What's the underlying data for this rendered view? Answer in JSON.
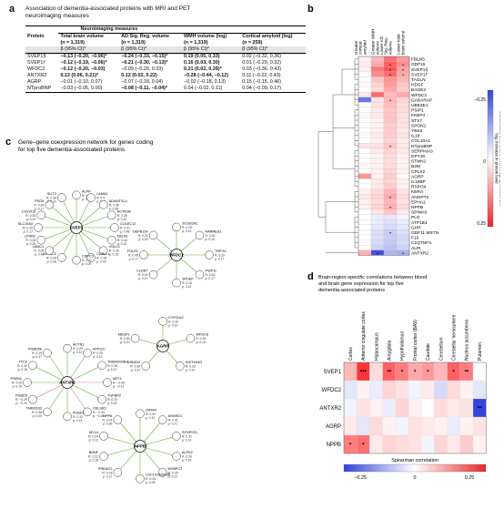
{
  "panel_a": {
    "letter": "a",
    "title": "Association of dementia-associated proteins with MRI and PET neuroimaging measures",
    "group_header": "Neuroimaging measures",
    "columns": [
      {
        "label": "Protein",
        "sub": ""
      },
      {
        "label": "Total brain volume",
        "sub": "(n = 1,319)"
      },
      {
        "label": "AD Sig. Reg. volume",
        "sub": "(n = 1,319)"
      },
      {
        "label": "WMH volume (log)",
        "sub": "(n = 1,319)"
      },
      {
        "label": "Cortical amyloid (log)",
        "sub": "(n = 259)"
      }
    ],
    "beta_label": "β (95% CI)*",
    "rows": [
      {
        "protein": "SVEP1§",
        "c1": "−0.13 (−0.20, −0.06)*",
        "c2": "−0.24 (−0.33, −0.15)*",
        "c3": "0.19 (0.05, 0.33)",
        "c4": "0.02 (−0.32, 0.36)",
        "bold": [
          true,
          true,
          true,
          false
        ]
      },
      {
        "protein": "SVEP1†",
        "c1": "−0.12 (−0.19, −0.06)*",
        "c2": "−0.21 (−0.30, −0.13)*",
        "c3": "0.16 (0.03, 0.30)",
        "c4": "0.01 (−0.29, 0.32)",
        "bold": [
          true,
          true,
          true,
          false
        ]
      },
      {
        "protein": "WFDC2",
        "c1": "−0.12 (−0.20, −0.03)",
        "c2": "−0.09 (−0.20, 0.03)",
        "c3": "0.21 (0.02, 0.39)*",
        "c4": "0.03 (−0.36, 0.43)",
        "bold": [
          true,
          false,
          true,
          false
        ]
      },
      {
        "protein": "ANTXR2",
        "c1": "0.13 (0.06, 0.21)*",
        "c2": "0.12 (0.02, 0.22)",
        "c3": "−0.28 (−0.44, −0.12)",
        "c4": "0.11 (−0.22, 0.43)",
        "bold": [
          true,
          true,
          true,
          false
        ]
      },
      {
        "protein": "AGRP",
        "c1": "−0.01 (−0.10, 0.07)",
        "c2": "−0.07 (−0.18, 0.04)",
        "c3": "−0.02 (−0.18, 0.13)",
        "c4": "0.15 (−0.15, 0.46)",
        "bold": [
          false,
          false,
          false,
          false
        ]
      },
      {
        "protein": "NTproBNP",
        "c1": "−0.03 (−0.05, 0.00)",
        "c2": "−0.08 (−0.11, −0.04)*",
        "c3": "0.04 (−0.02, 0.11)",
        "c4": "0.04 (−0.09, 0.17)",
        "bold": [
          false,
          true,
          false,
          false
        ]
      }
    ]
  },
  "panel_b": {
    "letter": "b",
    "col_labels": [
      "Greater cortical amyloid",
      "Greater WMH volume",
      "Lower AD Sig. Reg. volume",
      "Lower total brain volume"
    ],
    "row_labels": [
      "FBLN5",
      "GDF15",
      "SVEP1§",
      "SVEP1†",
      "TAGLN",
      "HDGF",
      "BAGE2",
      "WFDC2",
      "GABARAP",
      "UBE2E1",
      "PSIP1",
      "FKBP4",
      "STX7",
      "SPON1",
      "YBX2",
      "IL18",
      "COL10A1",
      "NTproBNP",
      "SERPINA3",
      "DPY30",
      "STMN1",
      "B2M",
      "CPLX2",
      "AGRP",
      "IL18BP",
      "RSPO4",
      "KERA",
      "ANGPT2",
      "EPHA2",
      "NPPB",
      "SPINK9",
      "PLG",
      "ATP1B1",
      "GHR",
      "GDF11 MSTN",
      "F10",
      "C1QTNF3",
      "ALPI",
      "ANTXR2"
    ],
    "legend_title": "Standardized difference in neuroimaging measure per log₂ increase in protein level",
    "legend_ticks": [
      "−0.25",
      "0",
      "0.25"
    ],
    "colors": {
      "neg": "#3344dd",
      "pos": "#e8262a",
      "mid": "#ffffff"
    }
  },
  "panel_c": {
    "letter": "c",
    "title": "Gene–gene coexpression network for genes coding for top five dementia-associated proteins",
    "hubs": [
      "SVEP1",
      "WFDC2",
      "AGRP",
      "ANTXR2",
      "NPPB"
    ],
    "nodes": [
      {
        "name": "ALPP",
        "r": "0.35",
        "p": "0.12"
      },
      {
        "name": "LAMA2",
        "r": "0.9",
        "p": "0.61"
      },
      {
        "name": "ADAMTSL4",
        "r": "0.35",
        "p": "0.59"
      },
      {
        "name": "ACTR1B",
        "r": "0.35",
        "p": "0.12"
      },
      {
        "name": "COLEC12",
        "r": "0.31",
        "p": "0.48"
      },
      {
        "name": "FBLN1",
        "r": "0.44",
        "p": "0.15"
      },
      {
        "name": "VGLL3",
        "r": "0.29",
        "p": "0.15"
      },
      {
        "name": "COBLL1",
        "r": "0.28",
        "p": "0.43"
      },
      {
        "name": "CDPC3",
        "r": "0.37",
        "p": "0.09"
      },
      {
        "name": "KDELC2",
        "r": "0.34",
        "p": "0.28"
      },
      {
        "name": "LAMC1",
        "r": "0.28",
        "p": "0.43"
      },
      {
        "name": "LPHN2",
        "r": "0.26",
        "p": "0.25"
      },
      {
        "name": "SLC19A3",
        "r": "0.29",
        "p": "0.17"
      },
      {
        "name": "C10orf10",
        "r": "0.30",
        "p": "0.14"
      },
      {
        "name": "PSG9",
        "r": "0.30",
        "p": "0.17"
      },
      {
        "name": "SLIT3",
        "r": "0.34",
        "p": "0.13"
      },
      {
        "name": "SCGB2A1",
        "r": "0.29",
        "p": "0.10"
      },
      {
        "name": "RARRES1",
        "r": "0.30",
        "p": "0.19"
      },
      {
        "name": "TRPV4",
        "r": "0.29",
        "p": "0.17"
      },
      {
        "name": "PSIP11",
        "r": "0.40",
        "p": "0.17"
      },
      {
        "name": "SPDEF",
        "r": "0.16",
        "p": "0.10"
      },
      {
        "name": "CLDN7",
        "r": "0.30",
        "p": "0.17"
      },
      {
        "name": "FOLR1",
        "r": "0.45",
        "p": "0.17"
      },
      {
        "name": "DEFB124",
        "r": "0.24",
        "p": "0.30"
      },
      {
        "name": "CYP21A2",
        "r": "0.33",
        "p": "0.10"
      },
      {
        "name": "WFDC6",
        "r": "0.33",
        "p": "0.10"
      },
      {
        "name": "HIST1H4G",
        "r": "0.33",
        "p": "0.10"
      },
      {
        "name": "RHBDD2",
        "r": "0.30",
        "p": "0.17"
      },
      {
        "name": "MESP2",
        "r": "0.33",
        "p": "0.10"
      },
      {
        "name": "ACTN1",
        "r": "0.29",
        "p": "0.12"
      },
      {
        "name": "ATP11C",
        "r": "0.29",
        "p": "0.15"
      },
      {
        "name": "TMEM200B",
        "r": "0.26",
        "p": "0.17"
      },
      {
        "name": "MZT1",
        "r": "−0.45",
        "p": "−0.12"
      },
      {
        "name": "TGFBR2",
        "r": "0.23",
        "p": "0.22"
      },
      {
        "name": "CELSR2",
        "r": "−0.44",
        "p": "−0.26"
      },
      {
        "name": "PCBD1",
        "r": "0.33",
        "p": "0.15"
      },
      {
        "name": "TMEM163",
        "r": "0.38",
        "p": "0.09"
      },
      {
        "name": "PGBD5",
        "r": "−0.29",
        "p": "−0.19"
      },
      {
        "name": "PSEN1",
        "r": "0.25",
        "p": "0.19"
      },
      {
        "name": "TTC9",
        "r": "0.30",
        "p": "0.19"
      },
      {
        "name": "PGBD5b",
        "r": "0.19",
        "p": "0.17"
      },
      {
        "name": "GATA4",
        "r": "0.34",
        "p": "0.11"
      },
      {
        "name": "ANKRD1",
        "r": "0.41",
        "p": "0.21"
      },
      {
        "name": "SYNPO2L",
        "r": "0.31",
        "p": "0.14"
      },
      {
        "name": "ALPK2",
        "r": "0.30",
        "p": "0.16"
      },
      {
        "name": "MYBPC3",
        "r": "0.29",
        "p": "0.12"
      },
      {
        "name": "LOC101928435",
        "r": "0.33",
        "p": "0.09"
      },
      {
        "name": "PRKAG2",
        "r": "0.23",
        "p": "0.17"
      },
      {
        "name": "BDNF",
        "r": "0.22",
        "p": "0.18"
      },
      {
        "name": "MYL4",
        "r": "0.24",
        "p": "0.12"
      },
      {
        "name": "NPPA",
        "r": "0.24",
        "p": "0.26"
      }
    ]
  },
  "panel_d": {
    "letter": "d",
    "title": "Brain-region-specific correlations between blood and brain gene expression for top five dementia-associated proteins",
    "regions": [
      "Cortex",
      "Anterior cingulate cortex",
      "Hippocampus",
      "Amygdala",
      "Hypothalamus",
      "Frontal cortex (BA9)",
      "Caudate",
      "Cerebellum",
      "Cerebellar hemisphere",
      "Nucleus accumbens",
      "Putamen"
    ],
    "genes": [
      "SVEP1",
      "WFDC2",
      "ANTXR2",
      "AGRP",
      "NPPB"
    ],
    "legend_title": "Spearman correlation",
    "legend_ticks": [
      "−0.25",
      "0",
      "0.25"
    ]
  },
  "chart_data": [
    {
      "type": "heatmap",
      "title": "",
      "x": [
        "Greater cortical amyloid",
        "Greater WMH volume",
        "Lower AD Sig. Reg. volume",
        "Lower total brain volume"
      ],
      "y": [
        "FBLN5",
        "GDF15",
        "SVEP1§",
        "SVEP1†",
        "TAGLN",
        "HDGF",
        "BAGE2",
        "WFDC2",
        "GABARAP",
        "UBE2E1",
        "PSIP1",
        "FKBP4",
        "STX7",
        "SPON1",
        "YBX2",
        "IL18",
        "COL10A1",
        "NTproBNP",
        "SERPINA3",
        "DPY30",
        "STMN1",
        "B2M",
        "CPLX2",
        "AGRP",
        "IL18BP",
        "RSPO4",
        "KERA",
        "ANGPT2",
        "EPHA2",
        "NPPB",
        "SPINK9",
        "PLG",
        "ATP1B1",
        "GHR",
        "GDF11 MSTN",
        "F10",
        "C1QTNF3",
        "ALPI",
        "ANTXR2"
      ],
      "values": [
        [
          0.02,
          0.1,
          0.2,
          0.14
        ],
        [
          0.03,
          0.12,
          0.22,
          0.16
        ],
        [
          0.02,
          0.19,
          0.24,
          0.13
        ],
        [
          0.01,
          0.16,
          0.21,
          0.12
        ],
        [
          0.0,
          0.08,
          0.15,
          0.1
        ],
        [
          0.01,
          0.06,
          0.14,
          0.08
        ],
        [
          0.0,
          0.05,
          0.12,
          0.07
        ],
        [
          0.03,
          0.21,
          0.09,
          0.12
        ],
        [
          -0.22,
          0.04,
          0.1,
          0.06
        ],
        [
          0.0,
          0.04,
          0.09,
          0.05
        ],
        [
          0.0,
          0.03,
          0.08,
          0.05
        ],
        [
          -0.01,
          0.03,
          0.08,
          0.04
        ],
        [
          0.0,
          0.02,
          0.08,
          0.04
        ],
        [
          0.0,
          0.02,
          0.07,
          0.04
        ],
        [
          0.0,
          0.02,
          0.07,
          0.03
        ],
        [
          0.01,
          0.03,
          0.07,
          0.04
        ],
        [
          0.0,
          0.02,
          0.06,
          0.03
        ],
        [
          0.04,
          0.04,
          0.08,
          0.03
        ],
        [
          0.0,
          0.03,
          0.06,
          0.03
        ],
        [
          0.0,
          0.02,
          0.05,
          0.02
        ],
        [
          0.0,
          0.02,
          0.05,
          0.02
        ],
        [
          0.01,
          0.02,
          0.05,
          0.02
        ],
        [
          0.0,
          0.02,
          0.06,
          0.02
        ],
        [
          0.15,
          0.02,
          0.07,
          0.01
        ],
        [
          0.0,
          0.03,
          0.06,
          0.02
        ],
        [
          0.0,
          0.03,
          0.07,
          0.02
        ],
        [
          0.02,
          0.05,
          0.1,
          0.04
        ],
        [
          0.03,
          0.06,
          0.12,
          0.05
        ],
        [
          0.02,
          0.05,
          0.1,
          0.04
        ],
        [
          0.02,
          0.06,
          0.11,
          0.05
        ],
        [
          0.0,
          0.04,
          0.08,
          0.03
        ],
        [
          0.0,
          -0.03,
          -0.04,
          -0.02
        ],
        [
          0.0,
          -0.03,
          -0.05,
          -0.03
        ],
        [
          0.0,
          -0.04,
          -0.06,
          -0.04
        ],
        [
          0.0,
          -0.05,
          -0.08,
          -0.05
        ],
        [
          0.0,
          -0.05,
          -0.08,
          -0.06
        ],
        [
          0.0,
          -0.06,
          -0.09,
          -0.06
        ],
        [
          0.0,
          -0.07,
          -0.1,
          -0.07
        ],
        [
          0.11,
          -0.28,
          -0.12,
          -0.13
        ]
      ],
      "significant": [
        [
          1,
          2
        ],
        [
          1,
          3
        ],
        [
          2,
          2
        ],
        [
          2,
          3
        ],
        [
          3,
          2
        ],
        [
          3,
          3
        ],
        [
          8,
          2
        ],
        [
          17,
          2
        ],
        [
          27,
          2
        ],
        [
          29,
          2
        ],
        [
          34,
          2
        ],
        [
          38,
          1
        ],
        [
          38,
          3
        ]
      ],
      "vrange": [
        -0.3,
        0.3
      ]
    },
    {
      "type": "heatmap",
      "title": "",
      "x": [
        "Cortex",
        "Anterior cingulate cortex",
        "Hippocampus",
        "Amygdala",
        "Hypothalamus",
        "Frontal cortex (BA9)",
        "Caudate",
        "Cerebellum",
        "Cerebellar hemisphere",
        "Nucleus accumbens",
        "Putamen"
      ],
      "y": [
        "SVEP1",
        "WFDC2",
        "ANTXR2",
        "AGRP",
        "NPPB"
      ],
      "values": [
        [
          0.1,
          0.28,
          0.05,
          0.22,
          0.18,
          0.12,
          0.14,
          0.1,
          0.22,
          0.18,
          0.0
        ],
        [
          -0.04,
          0.02,
          -0.03,
          0.06,
          0.04,
          -0.02,
          0.03,
          -0.06,
          0.05,
          0.02,
          -0.04
        ],
        [
          -0.02,
          0.04,
          0.02,
          -0.03,
          0.06,
          0.02,
          0.0,
          0.05,
          0.03,
          0.04,
          -0.3
        ],
        [
          0.03,
          -0.04,
          0.05,
          0.02,
          -0.02,
          0.04,
          0.03,
          0.02,
          -0.03,
          0.02,
          0.04
        ],
        [
          0.18,
          0.2,
          0.03,
          0.06,
          0.05,
          0.04,
          -0.02,
          0.06,
          0.03,
          0.07,
          0.02
        ]
      ],
      "stars": [
        [
          0,
          1,
          "***"
        ],
        [
          0,
          3,
          "**"
        ],
        [
          0,
          4,
          "*"
        ],
        [
          0,
          5,
          "*"
        ],
        [
          0,
          6,
          "*"
        ],
        [
          0,
          8,
          "*"
        ],
        [
          0,
          9,
          "**"
        ],
        [
          2,
          10,
          "**"
        ],
        [
          4,
          0,
          "*"
        ],
        [
          4,
          1,
          "*"
        ]
      ],
      "vrange": [
        -0.3,
        0.3
      ]
    }
  ]
}
